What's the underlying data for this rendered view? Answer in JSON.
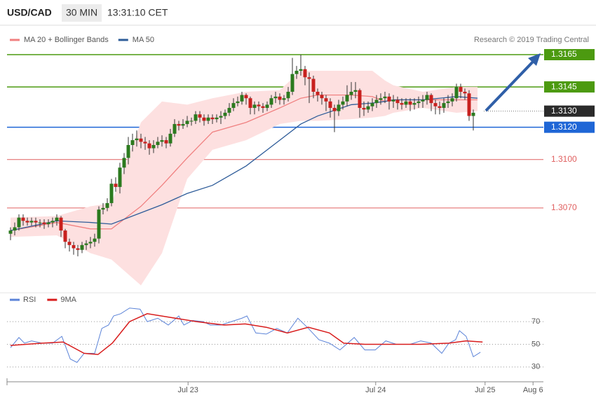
{
  "chart_data": {
    "type": "candlestick",
    "symbol": "USD/CAD",
    "interval": "30 MIN",
    "time": "13:31:10 CET",
    "credit": "Research © 2019 Trading Central",
    "xlim": [
      -1,
      126
    ],
    "ylim": [
      1.302,
      1.3171
    ],
    "xticks": [
      {
        "value": 42.2,
        "label": "Jul 23"
      },
      {
        "value": 86.8,
        "label": "Jul 24"
      },
      {
        "value": 112.8,
        "label": "Jul 25"
      },
      {
        "value": 124.2,
        "label": "Aug 6"
      }
    ],
    "up_color": "#2b7a1e",
    "down_color": "#c8201e",
    "ohlc": [
      [
        1.3054,
        1.3058,
        1.305,
        1.3056
      ],
      [
        1.3056,
        1.3061,
        1.3053,
        1.3058
      ],
      [
        1.3058,
        1.3066,
        1.3056,
        1.3064
      ],
      [
        1.3064,
        1.3066,
        1.3059,
        1.3062
      ],
      [
        1.3062,
        1.3064,
        1.3059,
        1.3061
      ],
      [
        1.3061,
        1.3064,
        1.3059,
        1.3062
      ],
      [
        1.3062,
        1.3064,
        1.3058,
        1.3061
      ],
      [
        1.3061,
        1.3063,
        1.3058,
        1.3061
      ],
      [
        1.3061,
        1.3063,
        1.3057,
        1.306
      ],
      [
        1.306,
        1.3063,
        1.3058,
        1.3061
      ],
      [
        1.3061,
        1.3064,
        1.3058,
        1.3062
      ],
      [
        1.3062,
        1.3066,
        1.3059,
        1.3064
      ],
      [
        1.3064,
        1.3065,
        1.3052,
        1.3056
      ],
      [
        1.3056,
        1.3057,
        1.3045,
        1.3049
      ],
      [
        1.3049,
        1.3051,
        1.3043,
        1.3047
      ],
      [
        1.3047,
        1.3049,
        1.3041,
        1.3045
      ],
      [
        1.3045,
        1.3047,
        1.304,
        1.3044
      ],
      [
        1.3044,
        1.3049,
        1.3042,
        1.3047
      ],
      [
        1.3047,
        1.305,
        1.3044,
        1.3048
      ],
      [
        1.3048,
        1.3052,
        1.3045,
        1.3049
      ],
      [
        1.3049,
        1.3054,
        1.3046,
        1.3051
      ],
      [
        1.3051,
        1.3071,
        1.3048,
        1.3069
      ],
      [
        1.3069,
        1.3073,
        1.3066,
        1.307
      ],
      [
        1.307,
        1.3076,
        1.3068,
        1.3073
      ],
      [
        1.3073,
        1.3088,
        1.3071,
        1.3085
      ],
      [
        1.3085,
        1.3089,
        1.308,
        1.3083
      ],
      [
        1.3083,
        1.3098,
        1.3079,
        1.3095
      ],
      [
        1.3095,
        1.3104,
        1.3091,
        1.3101
      ],
      [
        1.3101,
        1.3114,
        1.3097,
        1.3109
      ],
      [
        1.3109,
        1.3116,
        1.3105,
        1.3112
      ],
      [
        1.3112,
        1.3118,
        1.3108,
        1.3113
      ],
      [
        1.3113,
        1.3116,
        1.3107,
        1.3111
      ],
      [
        1.3111,
        1.3114,
        1.3106,
        1.311
      ],
      [
        1.311,
        1.3112,
        1.3103,
        1.3107
      ],
      [
        1.3107,
        1.3112,
        1.3104,
        1.3109
      ],
      [
        1.3109,
        1.3114,
        1.3107,
        1.3111
      ],
      [
        1.3111,
        1.3115,
        1.3108,
        1.3112
      ],
      [
        1.3112,
        1.3114,
        1.3107,
        1.311
      ],
      [
        1.311,
        1.3119,
        1.3108,
        1.3116
      ],
      [
        1.3116,
        1.3125,
        1.3114,
        1.3122
      ],
      [
        1.3122,
        1.3124,
        1.3118,
        1.3121
      ],
      [
        1.3121,
        1.3125,
        1.3119,
        1.3122
      ],
      [
        1.3122,
        1.3127,
        1.312,
        1.3124
      ],
      [
        1.3124,
        1.3126,
        1.3121,
        1.3124
      ],
      [
        1.3124,
        1.313,
        1.3122,
        1.3128
      ],
      [
        1.3128,
        1.313,
        1.3123,
        1.3126
      ],
      [
        1.3126,
        1.3128,
        1.3121,
        1.3124
      ],
      [
        1.3124,
        1.3128,
        1.3122,
        1.3126
      ],
      [
        1.3126,
        1.3128,
        1.3122,
        1.3125
      ],
      [
        1.3125,
        1.3128,
        1.3123,
        1.3126
      ],
      [
        1.3126,
        1.313,
        1.3122,
        1.3127
      ],
      [
        1.3127,
        1.3131,
        1.3125,
        1.3129
      ],
      [
        1.3129,
        1.3135,
        1.3127,
        1.3132
      ],
      [
        1.3132,
        1.3138,
        1.313,
        1.3135
      ],
      [
        1.3135,
        1.3139,
        1.3133,
        1.3136
      ],
      [
        1.3136,
        1.3142,
        1.3134,
        1.314
      ],
      [
        1.314,
        1.3141,
        1.3134,
        1.3138
      ],
      [
        1.3138,
        1.3139,
        1.3128,
        1.3132
      ],
      [
        1.3132,
        1.3136,
        1.3128,
        1.3134
      ],
      [
        1.3134,
        1.3136,
        1.313,
        1.3133
      ],
      [
        1.3133,
        1.3135,
        1.3129,
        1.3132
      ],
      [
        1.3132,
        1.3136,
        1.313,
        1.3134
      ],
      [
        1.3134,
        1.314,
        1.3132,
        1.3138
      ],
      [
        1.3138,
        1.3142,
        1.3135,
        1.3139
      ],
      [
        1.3139,
        1.3141,
        1.3134,
        1.3137
      ],
      [
        1.3137,
        1.314,
        1.3134,
        1.3138
      ],
      [
        1.3138,
        1.3145,
        1.3136,
        1.3142
      ],
      [
        1.3142,
        1.3163,
        1.314,
        1.3153
      ],
      [
        1.3153,
        1.3158,
        1.315,
        1.3155
      ],
      [
        1.3155,
        1.3165,
        1.3152,
        1.3156
      ],
      [
        1.3156,
        1.3158,
        1.3146,
        1.3151
      ],
      [
        1.3151,
        1.3154,
        1.3135,
        1.315
      ],
      [
        1.315,
        1.3152,
        1.3138,
        1.3142
      ],
      [
        1.3142,
        1.3144,
        1.3136,
        1.314
      ],
      [
        1.314,
        1.3142,
        1.3134,
        1.3138
      ],
      [
        1.3138,
        1.314,
        1.313,
        1.3136
      ],
      [
        1.3136,
        1.3138,
        1.3126,
        1.3132
      ],
      [
        1.3132,
        1.3134,
        1.3117,
        1.313
      ],
      [
        1.313,
        1.3137,
        1.3127,
        1.3134
      ],
      [
        1.3134,
        1.3139,
        1.3131,
        1.3136
      ],
      [
        1.3136,
        1.3146,
        1.3133,
        1.314
      ],
      [
        1.314,
        1.3148,
        1.3137,
        1.3142
      ],
      [
        1.3142,
        1.3148,
        1.3138,
        1.3143
      ],
      [
        1.3143,
        1.3144,
        1.3126,
        1.3132
      ],
      [
        1.3132,
        1.3136,
        1.3127,
        1.3131
      ],
      [
        1.3131,
        1.3136,
        1.3129,
        1.3133
      ],
      [
        1.3133,
        1.3138,
        1.313,
        1.3135
      ],
      [
        1.3135,
        1.314,
        1.3132,
        1.3137
      ],
      [
        1.3137,
        1.3141,
        1.3134,
        1.3138
      ],
      [
        1.3138,
        1.3142,
        1.3135,
        1.3139
      ],
      [
        1.3139,
        1.3141,
        1.3131,
        1.3136
      ],
      [
        1.3136,
        1.314,
        1.3132,
        1.3137
      ],
      [
        1.3137,
        1.3139,
        1.3131,
        1.3135
      ],
      [
        1.3135,
        1.3138,
        1.3131,
        1.3134
      ],
      [
        1.3134,
        1.3138,
        1.3132,
        1.3136
      ],
      [
        1.3136,
        1.3138,
        1.313,
        1.3134
      ],
      [
        1.3134,
        1.3138,
        1.3131,
        1.3135
      ],
      [
        1.3135,
        1.3139,
        1.3132,
        1.3136
      ],
      [
        1.3136,
        1.314,
        1.3132,
        1.3137
      ],
      [
        1.3137,
        1.3142,
        1.3134,
        1.314
      ],
      [
        1.314,
        1.3141,
        1.313,
        1.3135
      ],
      [
        1.3135,
        1.3137,
        1.3128,
        1.3133
      ],
      [
        1.3133,
        1.3136,
        1.3128,
        1.3132
      ],
      [
        1.3132,
        1.3138,
        1.3129,
        1.3135
      ],
      [
        1.3135,
        1.314,
        1.3132,
        1.3136
      ],
      [
        1.3136,
        1.3141,
        1.3133,
        1.3138
      ],
      [
        1.3138,
        1.3147,
        1.3136,
        1.3145
      ],
      [
        1.3145,
        1.3147,
        1.3138,
        1.3142
      ],
      [
        1.3142,
        1.3144,
        1.3137,
        1.3141
      ],
      [
        1.3141,
        1.3143,
        1.3124,
        1.3127
      ],
      [
        1.3127,
        1.3131,
        1.3118,
        1.3129
      ]
    ],
    "indicator_x": [
      0,
      11,
      19,
      24,
      31,
      36,
      42,
      48,
      56,
      64,
      69,
      73,
      81,
      86,
      89,
      91,
      98,
      106,
      111
    ],
    "bands": {
      "color": "#fde0e0",
      "upper": [
        1.3064,
        1.3065,
        1.3071,
        1.3073,
        1.3123,
        1.3136,
        1.3134,
        1.3138,
        1.3142,
        1.3143,
        1.3155,
        1.3155,
        1.3155,
        1.3155,
        1.3149,
        1.3146,
        1.3142,
        1.3145,
        1.3145
      ],
      "lower": [
        1.3052,
        1.3053,
        1.3042,
        1.3038,
        1.3022,
        1.3042,
        1.3088,
        1.3106,
        1.3112,
        1.3122,
        1.3124,
        1.3124,
        1.3125,
        1.3126,
        1.3127,
        1.3129,
        1.3132,
        1.3129,
        1.313
      ]
    },
    "series": [
      {
        "name": "MA 20 + Bollinger Bands",
        "color": "#f08080",
        "values": [
          1.3056,
          1.3061,
          1.3057,
          1.3057,
          1.3071,
          1.3084,
          1.3101,
          1.3117,
          1.3123,
          1.3132,
          1.3138,
          1.314,
          1.314,
          1.3139,
          1.3136,
          1.3137,
          1.3137,
          1.3137,
          1.3137
        ]
      },
      {
        "name": "MA 50",
        "color": "#2e5c99",
        "values": [
          1.3056,
          1.3062,
          1.3061,
          1.306,
          1.3067,
          1.3072,
          1.3079,
          1.3084,
          1.3096,
          1.3112,
          1.3122,
          1.3127,
          1.3134,
          1.3135,
          1.3136,
          1.3137,
          1.3137,
          1.3139,
          1.3138
        ]
      }
    ],
    "levels": [
      {
        "value": 1.3165,
        "label": "1.3165",
        "kind": "resistance",
        "color": "#4c9a10"
      },
      {
        "value": 1.3145,
        "label": "1.3145",
        "kind": "resistance",
        "color": "#4c9a10"
      },
      {
        "value": 1.313,
        "label": "1.3130",
        "kind": "pivot",
        "color": "#2b2b2b"
      },
      {
        "value": 1.312,
        "label": "1.3120",
        "kind": "support",
        "color": "#1f66d6"
      },
      {
        "value": 1.31,
        "label": "1.3100",
        "kind": "minor",
        "color": "#e06060"
      },
      {
        "value": 1.307,
        "label": "1.3070",
        "kind": "minor",
        "color": "#e06060"
      }
    ],
    "rsi": {
      "type": "line",
      "ylim": [
        20,
        88
      ],
      "yticks": [
        70,
        50,
        30
      ],
      "series": [
        {
          "name": "RSI",
          "color": "#5b83d8",
          "x": [
            0,
            2,
            3.3,
            5,
            7.5,
            10,
            12.2,
            14.2,
            15.8,
            17.5,
            20,
            21.7,
            23.3,
            24.5,
            26.2,
            28.3,
            30.8,
            32.5,
            35,
            37.5,
            40,
            41.2,
            43.3,
            45.8,
            47.5,
            50,
            52.5,
            55,
            56.2,
            58.3,
            60.8,
            63.3,
            65.8,
            68.3,
            70.8,
            73.3,
            75.8,
            78.3,
            81.7,
            84.2,
            86.7,
            89.2,
            91.7,
            95,
            97.5,
            100,
            102.5,
            104.2,
            105.8,
            106.7,
            108.3,
            110,
            111.7
          ],
          "values": [
            47,
            56,
            51,
            53,
            51,
            51,
            57,
            37,
            34,
            42,
            42,
            64,
            67,
            75,
            77,
            82,
            81,
            70,
            73,
            67,
            75,
            67,
            71,
            70,
            67,
            67,
            70,
            73,
            75,
            60,
            59,
            64,
            60,
            73,
            64,
            54,
            51,
            45,
            56,
            45,
            45,
            53,
            50,
            50,
            53,
            51,
            42,
            51,
            54,
            62,
            57,
            39,
            43
          ]
        },
        {
          "name": "9MA",
          "color": "#d81c1c",
          "x": [
            0,
            7.5,
            12.5,
            17.5,
            20.8,
            24.2,
            28.3,
            32.5,
            37.5,
            44.2,
            50.8,
            55.8,
            60.8,
            65.8,
            70.8,
            75.8,
            79.2,
            84.2,
            90.8,
            97.5,
            104.2,
            108.3,
            112.2
          ],
          "values": [
            49,
            51,
            52,
            42,
            41,
            51,
            70,
            77,
            74,
            70,
            67,
            68,
            65,
            60,
            65,
            60,
            51,
            50,
            50,
            50,
            51,
            53,
            52
          ]
        }
      ]
    }
  }
}
